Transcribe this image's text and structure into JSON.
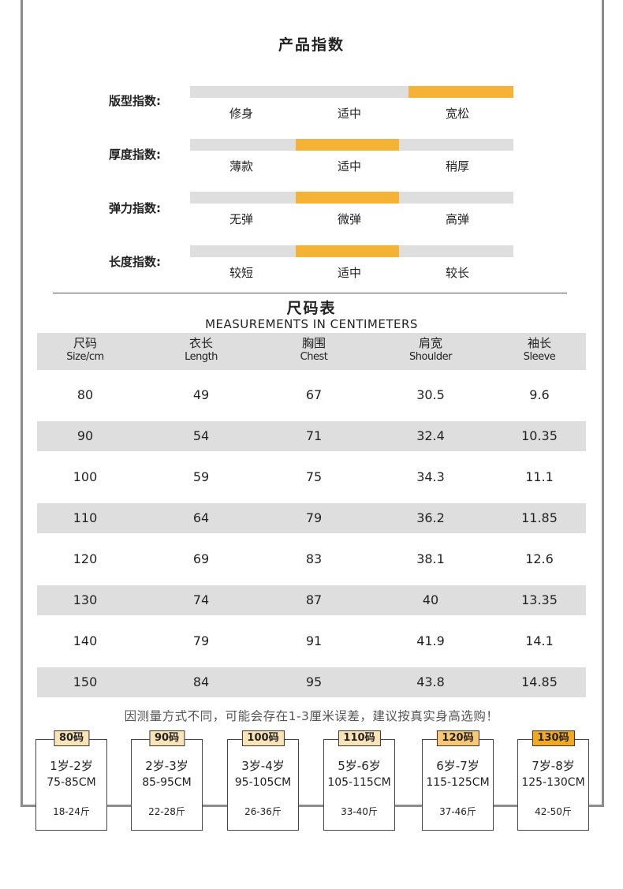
{
  "product_index": {
    "title": "产品指数",
    "rows": [
      {
        "label": "版型指数:",
        "options": [
          "修身",
          "适中",
          "宽松"
        ],
        "selected": 2
      },
      {
        "label": "厚度指数:",
        "options": [
          "薄款",
          "适中",
          "稍厚"
        ],
        "selected": 1
      },
      {
        "label": "弹力指数:",
        "options": [
          "无弹",
          "微弹",
          "高弹"
        ],
        "selected": 1
      },
      {
        "label": "长度指数:",
        "options": [
          "较短",
          "适中",
          "较长"
        ],
        "selected": 1
      }
    ],
    "accent_color": "#f5b335",
    "track_color": "#dedede"
  },
  "size_chart": {
    "title": "尺码表",
    "subtitle": "MEASUREMENTS IN CENTIMETERS",
    "headers": [
      {
        "cn": "尺码",
        "en": "Size/cm"
      },
      {
        "cn": "衣长",
        "en": "Length"
      },
      {
        "cn": "胸围",
        "en": "Chest"
      },
      {
        "cn": "肩宽",
        "en": "Shoulder"
      },
      {
        "cn": "袖长",
        "en": "Sleeve"
      }
    ],
    "rows": [
      [
        "80",
        "49",
        "67",
        "30.5",
        "9.6"
      ],
      [
        "90",
        "54",
        "71",
        "32.4",
        "10.35"
      ],
      [
        "100",
        "59",
        "75",
        "34.3",
        "11.1"
      ],
      [
        "110",
        "64",
        "79",
        "36.2",
        "11.85"
      ],
      [
        "120",
        "69",
        "83",
        "38.1",
        "12.6"
      ],
      [
        "130",
        "74",
        "87",
        "40",
        "13.35"
      ],
      [
        "140",
        "79",
        "91",
        "41.9",
        "14.1"
      ],
      [
        "150",
        "84",
        "95",
        "43.8",
        "14.85"
      ]
    ]
  },
  "note": "因测量方式不同，可能会存在1-3厘米误差，建议按真实身高选购！",
  "size_cards": [
    {
      "size": "80码",
      "age": "1岁-2岁",
      "height": "75-85CM",
      "weight": "18-24斤"
    },
    {
      "size": "90码",
      "age": "2岁-3岁",
      "height": "85-95CM",
      "weight": "22-28斤"
    },
    {
      "size": "100码",
      "age": "3岁-4岁",
      "height": "95-105CM",
      "weight": "26-36斤"
    },
    {
      "size": "110码",
      "age": "5岁-6岁",
      "height": "105-115CM",
      "weight": "33-40斤"
    },
    {
      "size": "120码",
      "age": "6岁-7岁",
      "height": "115-125CM",
      "weight": "37-46斤"
    },
    {
      "size": "130码",
      "age": "7岁-8岁",
      "height": "125-130CM",
      "weight": "42-50斤"
    }
  ]
}
